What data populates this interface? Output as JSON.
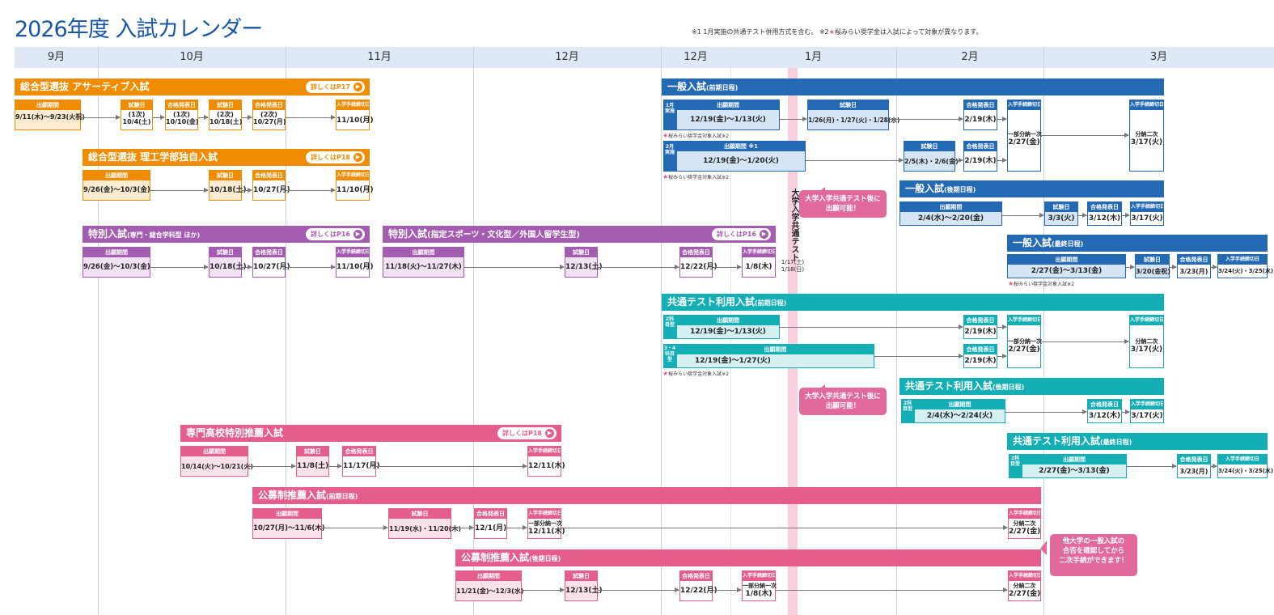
{
  "title": "2026年度 入試カレンダー",
  "note_part1": "※1 1月実施の共通テスト併用方式を含む。 ※2",
  "note_part2": "桜みらい奨学金は入試によって対象が異なります。",
  "months": [
    "9月",
    "10月",
    "11月",
    "12月",
    "12月",
    "1月",
    "2月",
    "3月"
  ],
  "center_test": {
    "label": "大学入学共通テスト",
    "date1": "1/17(土)",
    "date2": "1/18(日)"
  },
  "star_note": "桜みらい奨学金対象入試※2",
  "callout_after_test": "大学入学共通テスト後に\n出願可能！",
  "callout_other_univ": "他大学の一般入試の\n合否を確認してから\n二次手続ができます！",
  "labels": {
    "apply": "出願期間",
    "apply_note1": "出願期間 ※1",
    "exam": "試験日",
    "result": "合格発表日",
    "deadline": "入学手続締切日",
    "detail_p17": "詳しくはP17",
    "detail_p18": "詳しくはP18",
    "detail_p16": "詳しくはP16",
    "pay_first": "一部分納一次",
    "pay_second": "分納二次"
  },
  "assertive": {
    "title": "総合型選抜 アサーティブ入試",
    "apply": "9/11(木)～9/23(火祝)",
    "exam1": "(1次)\n10/4(土)",
    "result1": "(1次)\n10/10(金)",
    "exam2": "(2次)\n10/18(土)",
    "result2": "(2次)\n10/27(月)",
    "deadline": "11/10(月)"
  },
  "engineering": {
    "title": "総合型選抜 理工学部独自入試",
    "apply": "9/26(金)～10/3(金)",
    "exam": "10/18(土)",
    "result": "10/27(月)",
    "deadline": "11/10(月)"
  },
  "special1": {
    "title": "特別入試",
    "sub": "(専門・総合学科型 ほか)",
    "apply": "9/26(金)～10/3(金)",
    "exam": "10/18(土)",
    "result": "10/27(月)",
    "deadline": "11/10(月)"
  },
  "special2": {
    "title": "特別入試",
    "sub": "(指定スポーツ・文化型／外国人留学生型)",
    "apply": "11/18(火)～11/27(木)",
    "exam": "12/13(土)",
    "result": "12/22(月)",
    "deadline": "1/8(木)"
  },
  "vocational": {
    "title": "専門高校特別推薦入試",
    "apply": "10/14(火)～10/21(火)",
    "exam": "11/8(土)",
    "result": "11/17(月)",
    "deadline": "12/11(木)"
  },
  "public_early": {
    "title": "公募制推薦入試",
    "sub": "(前期日程)",
    "apply": "10/27(月)～11/6(木)",
    "exam": "11/19(水)・11/20(木)",
    "result": "12/1(月)",
    "deadline1": "12/11(木)",
    "deadline2": "2/27(金)"
  },
  "public_late": {
    "title": "公募制推薦入試",
    "sub": "(後期日程)",
    "apply": "11/21(金)～12/3(水)",
    "exam": "12/13(土)",
    "result": "12/22(月)",
    "deadline1": "1/8(木)",
    "deadline2": "2/27(金)"
  },
  "general_early": {
    "title": "一般入試",
    "sub": "(前期日程)",
    "tag_a": "1月実施",
    "tag_b": "2月実施",
    "a_apply": "12/19(金)～1/13(火)",
    "a_exam": "1/26(月)・1/27(火)・1/28(水)",
    "a_result": "2/19(木)",
    "b_apply": "12/19(金)～1/20(火)",
    "b_exam": "2/5(木)・2/6(金)",
    "b_result": "2/19(木)",
    "deadline1": "2/27(金)",
    "deadline2": "3/17(火)"
  },
  "general_late": {
    "title": "一般入試",
    "sub": "(後期日程)",
    "apply": "2/4(水)～2/20(金)",
    "exam": "3/3(火)",
    "result": "3/12(木)",
    "deadline": "3/17(火)"
  },
  "general_final": {
    "title": "一般入試",
    "sub": "(最終日程)",
    "apply": "2/27(金)～3/13(金)",
    "exam": "3/20(金祝)",
    "result": "3/23(月)",
    "deadline": "3/24(火)・3/25(水)"
  },
  "kyotsu_early": {
    "title": "共通テスト利用入試",
    "sub": "(前期日程)",
    "tag_a": "2科目型",
    "tag_b": "3・4科目型",
    "a_apply": "12/19(金)～1/13(火)",
    "a_result": "2/19(木)",
    "b_apply": "12/19(金)～1/27(火)",
    "b_result": "2/19(木)",
    "deadline1": "2/27(金)",
    "deadline2": "3/17(火)"
  },
  "kyotsu_late": {
    "title": "共通テスト利用入試",
    "sub": "(後期日程)",
    "tag": "2科目型",
    "apply": "2/4(水)～2/24(火)",
    "result": "3/12(木)",
    "deadline": "3/17(火)"
  },
  "kyotsu_final": {
    "title": "共通テスト利用入試",
    "sub": "(最終日程)",
    "tag": "2科目型",
    "apply": "2/27(金)～3/13(金)",
    "result": "3/23(月)",
    "deadline": "3/24(火)・3/25(水)"
  },
  "colors": {
    "orange": "#f08c00",
    "purple": "#a45cb0",
    "blue": "#2369b4",
    "teal": "#14aeb5",
    "pink": "#e55d8c",
    "title": "#1a56a8"
  }
}
